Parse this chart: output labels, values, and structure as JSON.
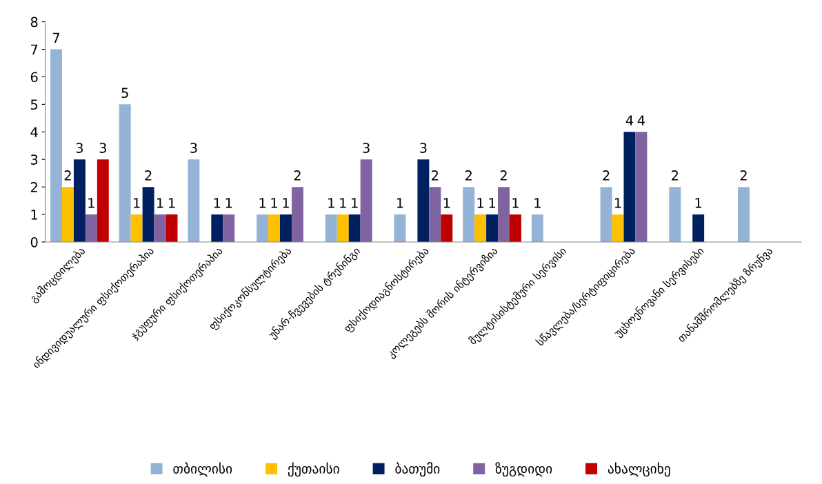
{
  "chart_data": {
    "type": "bar",
    "categories": [
      "გამოცდილება",
      "ინდივიდუალური ფსიქოთერაპია",
      "ჯგუფური ფსიქოთერაპია",
      "ფსიქოკონსულტირება",
      "უნარ-ჩვევების ტრენინგი",
      "ფსიქოდიაგნოსტირება",
      "კოლეგებს შორის ინტერვიზია",
      "მულტისისტემური სერვისი",
      "სწავლება/სერტიფიცირება",
      "უცხოენოვანი სერვისები",
      "თანამშრომლებზე ზრუნვა"
    ],
    "series": [
      {
        "name": "თბილისი",
        "color": "#95b3d7",
        "values": [
          7,
          5,
          3,
          1,
          1,
          1,
          2,
          1,
          2,
          2,
          2
        ]
      },
      {
        "name": "ქუთაისი",
        "color": "#ffc000",
        "values": [
          2,
          1,
          null,
          1,
          1,
          null,
          1,
          null,
          1,
          null,
          null
        ]
      },
      {
        "name": "ბათუმი",
        "color": "#002060",
        "values": [
          3,
          2,
          1,
          1,
          1,
          3,
          1,
          null,
          4,
          1,
          null
        ]
      },
      {
        "name": "ზუგდიდი",
        "color": "#8064a2",
        "values": [
          1,
          1,
          1,
          2,
          3,
          2,
          2,
          null,
          4,
          null,
          null
        ]
      },
      {
        "name": "ახალციხე",
        "color": "#c00000",
        "values": [
          3,
          1,
          null,
          null,
          null,
          1,
          1,
          null,
          null,
          null,
          null
        ]
      }
    ],
    "ylim": [
      0,
      8
    ],
    "yticks": [
      0,
      1,
      2,
      3,
      4,
      5,
      6,
      7,
      8
    ],
    "data_labels": true,
    "grid": false,
    "legend": "bottom"
  }
}
